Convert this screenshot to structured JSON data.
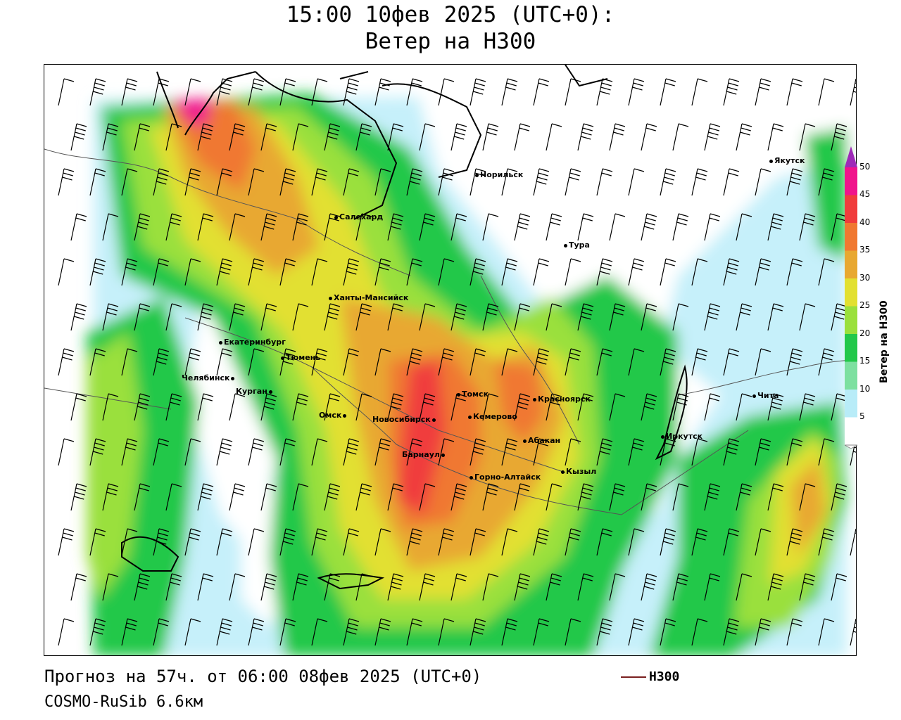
{
  "header": {
    "title_line1": "15:00 10фев 2025 (UTC+0):",
    "title_line2": "Ветер на H300"
  },
  "footer": {
    "forecast": "Прогноз на 57ч. от 06:00 08фев 2025 (UTC+0)",
    "model": "COSMO-RuSib 6.6км",
    "contour_label": "H300"
  },
  "legend": {
    "title": "Ветер на H300",
    "ticks": [
      "5",
      "10",
      "15",
      "20",
      "25",
      "30",
      "35",
      "40",
      "45",
      "50"
    ],
    "colors": [
      "#ffffff",
      "#b8ecf8",
      "#7de0a0",
      "#22c84a",
      "#9ae03c",
      "#e2e030",
      "#e8a830",
      "#f07830",
      "#f03c3c",
      "#f0148c",
      "#9e2ab8"
    ]
  },
  "cities": [
    {
      "name": "Норильск"
    },
    {
      "name": "Якутск"
    },
    {
      "name": "Салехард"
    },
    {
      "name": "Тура"
    },
    {
      "name": "Ханты-Мансийск"
    },
    {
      "name": "Екатеринбург"
    },
    {
      "name": "Тюмень"
    },
    {
      "name": "Челябинск"
    },
    {
      "name": "Курган"
    },
    {
      "name": "Омск"
    },
    {
      "name": "Новосибирск"
    },
    {
      "name": "Томск"
    },
    {
      "name": "Кемерово"
    },
    {
      "name": "Красноярск"
    },
    {
      "name": "Барнаул"
    },
    {
      "name": "Абакан"
    },
    {
      "name": "Горно-Алтайск"
    },
    {
      "name": "Кызыл"
    },
    {
      "name": "Иркутск"
    },
    {
      "name": "Чита"
    }
  ]
}
